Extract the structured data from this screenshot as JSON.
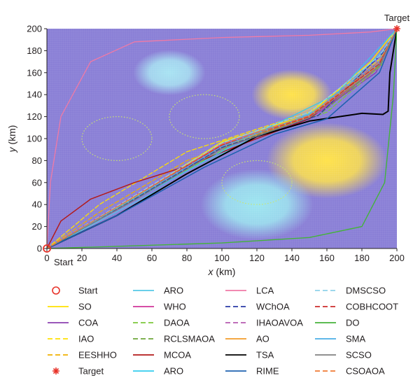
{
  "chart_data": {
    "type": "line",
    "xlabel": {
      "var": "x",
      "unit": " (km)"
    },
    "ylabel": {
      "var": "y",
      "unit": " (km)"
    },
    "xlim": [
      0,
      200
    ],
    "ylim": [
      0,
      200
    ],
    "xticks": [
      0,
      20,
      40,
      60,
      80,
      100,
      120,
      140,
      160,
      180,
      200
    ],
    "yticks": [
      0,
      20,
      40,
      60,
      80,
      100,
      120,
      140,
      160,
      180,
      200
    ],
    "grid": true,
    "background_color": "#8a7fd6",
    "annotations": {
      "start": "Start",
      "target": "Target"
    },
    "start_point": [
      0,
      0
    ],
    "target_point": [
      200,
      200
    ],
    "threats": [
      {
        "type": "filled",
        "center": [
          70,
          160
        ],
        "radius": 18,
        "color": "#a8e3f2"
      },
      {
        "type": "filled",
        "center": [
          140,
          140
        ],
        "radius": 20,
        "color": "#ffe24a"
      },
      {
        "type": "filled",
        "center": [
          160,
          80
        ],
        "radius": 30,
        "color": "#ffe24a"
      },
      {
        "type": "filled",
        "center": [
          120,
          40
        ],
        "radius": 28,
        "color": "#9de6f0"
      },
      {
        "type": "dotted",
        "center": [
          40,
          100
        ],
        "radius": 20,
        "color": "#c9e56b"
      },
      {
        "type": "dotted",
        "center": [
          90,
          120
        ],
        "radius": 20,
        "color": "#c9e56b"
      },
      {
        "type": "dotted",
        "center": [
          120,
          60
        ],
        "radius": 20,
        "color": "#c9e56b"
      }
    ],
    "series": [
      {
        "name": "SO",
        "color": "#ffe000",
        "dash": "solid",
        "width": 1.6,
        "points": [
          [
            0,
            0
          ],
          [
            50,
            47
          ],
          [
            100,
            97
          ],
          [
            150,
            122
          ],
          [
            185,
            170
          ],
          [
            200,
            200
          ]
        ]
      },
      {
        "name": "COA",
        "color": "#8c3fb0",
        "dash": "solid",
        "width": 1.3,
        "points": [
          [
            0,
            0
          ],
          [
            50,
            44
          ],
          [
            100,
            91
          ],
          [
            150,
            118
          ],
          [
            188,
            160
          ],
          [
            200,
            200
          ]
        ]
      },
      {
        "name": "IAO",
        "color": "#ffe100",
        "dash": "dash",
        "width": 1.3,
        "points": [
          [
            0,
            0
          ],
          [
            30,
            40
          ],
          [
            80,
            88
          ],
          [
            150,
            124
          ],
          [
            190,
            172
          ],
          [
            200,
            200
          ]
        ]
      },
      {
        "name": "EESHHO",
        "color": "#f0b000",
        "dash": "dash",
        "width": 1.3,
        "points": [
          [
            0,
            0
          ],
          [
            30,
            33
          ],
          [
            80,
            80
          ],
          [
            150,
            120
          ],
          [
            190,
            165
          ],
          [
            200,
            200
          ]
        ]
      },
      {
        "name": "ARO",
        "color": "#55c8e6",
        "dash": "solid",
        "width": 1.2,
        "points": [
          [
            0,
            0
          ],
          [
            60,
            50
          ],
          [
            110,
            95
          ],
          [
            160,
            130
          ],
          [
            192,
            180
          ],
          [
            200,
            200
          ]
        ]
      },
      {
        "name": "WHO",
        "color": "#d0349a",
        "dash": "solid",
        "width": 1.3,
        "points": [
          [
            0,
            0
          ],
          [
            50,
            48
          ],
          [
            100,
            94
          ],
          [
            150,
            118
          ],
          [
            190,
            165
          ],
          [
            200,
            200
          ]
        ]
      },
      {
        "name": "DAOA",
        "color": "#7cc83a",
        "dash": "dash",
        "width": 1.3,
        "points": [
          [
            0,
            0
          ],
          [
            60,
            54
          ],
          [
            110,
            98
          ],
          [
            160,
            124
          ],
          [
            192,
            168
          ],
          [
            200,
            200
          ]
        ]
      },
      {
        "name": "RCLSMAOA",
        "color": "#6da63a",
        "dash": "dash",
        "width": 1.3,
        "points": [
          [
            0,
            0
          ],
          [
            55,
            50
          ],
          [
            105,
            96
          ],
          [
            155,
            121
          ],
          [
            191,
            168
          ],
          [
            200,
            200
          ]
        ]
      },
      {
        "name": "MCOA",
        "color": "#b31a1a",
        "dash": "solid",
        "width": 1.5,
        "points": [
          [
            0,
            0
          ],
          [
            8,
            25
          ],
          [
            25,
            45
          ],
          [
            50,
            60
          ],
          [
            80,
            75
          ],
          [
            115,
            97
          ],
          [
            150,
            118
          ],
          [
            190,
            170
          ],
          [
            200,
            200
          ]
        ]
      },
      {
        "name": "ARO",
        "color": "#33ccee",
        "dash": "solid",
        "width": 1.2,
        "points": [
          [
            0,
            0
          ],
          [
            60,
            53
          ],
          [
            110,
            97
          ],
          [
            165,
            140
          ],
          [
            200,
            200
          ]
        ]
      },
      {
        "name": "LCA",
        "color": "#f07aa6",
        "dash": "solid",
        "width": 1.3,
        "points": [
          [
            0,
            0
          ],
          [
            2,
            60
          ],
          [
            8,
            120
          ],
          [
            25,
            170
          ],
          [
            50,
            188
          ],
          [
            100,
            192
          ],
          [
            150,
            194
          ],
          [
            185,
            197
          ],
          [
            200,
            200
          ]
        ]
      },
      {
        "name": "WChOA",
        "color": "#2a3aa6",
        "dash": "dash",
        "width": 1.3,
        "points": [
          [
            0,
            0
          ],
          [
            45,
            40
          ],
          [
            100,
            92
          ],
          [
            155,
            121
          ],
          [
            192,
            178
          ],
          [
            200,
            200
          ]
        ]
      },
      {
        "name": "IHAOAVOA",
        "color": "#b65ab0",
        "dash": "dash",
        "width": 1.3,
        "points": [
          [
            0,
            0
          ],
          [
            45,
            43
          ],
          [
            100,
            95
          ],
          [
            155,
            124
          ],
          [
            192,
            172
          ],
          [
            200,
            200
          ]
        ]
      },
      {
        "name": "AO",
        "color": "#f39c2a",
        "dash": "solid",
        "width": 1.3,
        "points": [
          [
            0,
            0
          ],
          [
            50,
            46
          ],
          [
            100,
            93
          ],
          [
            150,
            120
          ],
          [
            188,
            165
          ],
          [
            200,
            200
          ]
        ]
      },
      {
        "name": "TSA",
        "color": "#000000",
        "dash": "solid",
        "width": 2.0,
        "points": [
          [
            0,
            0
          ],
          [
            40,
            30
          ],
          [
            80,
            68
          ],
          [
            120,
            102
          ],
          [
            150,
            116
          ],
          [
            180,
            123
          ],
          [
            192,
            122
          ],
          [
            195,
            125
          ],
          [
            196,
            160
          ],
          [
            200,
            200
          ]
        ]
      },
      {
        "name": "RIME",
        "color": "#1f62b0",
        "dash": "solid",
        "width": 1.6,
        "points": [
          [
            0,
            0
          ],
          [
            40,
            30
          ],
          [
            90,
            74
          ],
          [
            130,
            104
          ],
          [
            160,
            118
          ],
          [
            190,
            160
          ],
          [
            200,
            200
          ]
        ]
      },
      {
        "name": "DMSCSO",
        "color": "#8ed2ea",
        "dash": "dash",
        "width": 1.3,
        "points": [
          [
            0,
            0
          ],
          [
            50,
            48
          ],
          [
            100,
            96
          ],
          [
            150,
            124
          ],
          [
            190,
            175
          ],
          [
            200,
            200
          ]
        ]
      },
      {
        "name": "COBHCOOT",
        "color": "#cc2d2d",
        "dash": "dash",
        "width": 1.3,
        "points": [
          [
            0,
            0
          ],
          [
            50,
            47
          ],
          [
            100,
            94
          ],
          [
            150,
            120
          ],
          [
            190,
            168
          ],
          [
            200,
            200
          ]
        ]
      },
      {
        "name": "DO",
        "color": "#44b33a",
        "dash": "solid",
        "width": 1.4,
        "points": [
          [
            0,
            0
          ],
          [
            40,
            2
          ],
          [
            100,
            5
          ],
          [
            150,
            10
          ],
          [
            180,
            20
          ],
          [
            193,
            60
          ],
          [
            198,
            140
          ],
          [
            200,
            200
          ]
        ]
      },
      {
        "name": "SMA",
        "color": "#4aaee6",
        "dash": "solid",
        "width": 1.3,
        "points": [
          [
            0,
            0
          ],
          [
            50,
            46
          ],
          [
            100,
            93
          ],
          [
            150,
            122
          ],
          [
            189,
            168
          ],
          [
            200,
            200
          ]
        ]
      },
      {
        "name": "SCSO",
        "color": "#808080",
        "dash": "solid",
        "width": 1.3,
        "points": [
          [
            0,
            0
          ],
          [
            50,
            44
          ],
          [
            100,
            91
          ],
          [
            150,
            119
          ],
          [
            190,
            166
          ],
          [
            200,
            200
          ]
        ]
      },
      {
        "name": "CSOAOA",
        "color": "#f07a33",
        "dash": "dash",
        "width": 1.3,
        "points": [
          [
            0,
            0
          ],
          [
            50,
            47
          ],
          [
            100,
            95
          ],
          [
            150,
            121
          ],
          [
            190,
            170
          ],
          [
            200,
            200
          ]
        ]
      }
    ],
    "legend": {
      "placement": "bottom",
      "columns": 4,
      "entries": [
        {
          "label": "Start",
          "marker": "circle",
          "color": "#e8332a"
        },
        {
          "label": "SO",
          "style": "solid",
          "color": "#ffe000"
        },
        {
          "label": "COA",
          "style": "solid",
          "color": "#8c3fb0"
        },
        {
          "label": "IAO",
          "style": "dash",
          "color": "#ffe100"
        },
        {
          "label": "EESHHO",
          "style": "dash",
          "color": "#f0b000"
        },
        {
          "label": "Target",
          "marker": "star",
          "color": "#e8332a"
        },
        {
          "label": "ARO",
          "style": "solid",
          "color": "#55c8e6"
        },
        {
          "label": "WHO",
          "style": "solid",
          "color": "#d0349a"
        },
        {
          "label": "DAOA",
          "style": "dash",
          "color": "#7cc83a"
        },
        {
          "label": "RCLSMAOA",
          "style": "dash",
          "color": "#6da63a"
        },
        {
          "label": "MCOA",
          "style": "solid",
          "color": "#b31a1a"
        },
        {
          "label": "ARO",
          "style": "solid",
          "color": "#33ccee"
        },
        {
          "label": "LCA",
          "style": "solid",
          "color": "#f07aa6"
        },
        {
          "label": "WChOA",
          "style": "dash",
          "color": "#2a3aa6"
        },
        {
          "label": "IHAOAVOA",
          "style": "dash",
          "color": "#b65ab0"
        },
        {
          "label": "AO",
          "style": "solid",
          "color": "#f39c2a"
        },
        {
          "label": "TSA",
          "style": "solid",
          "color": "#000000"
        },
        {
          "label": "RIME",
          "style": "solid",
          "color": "#1f62b0"
        },
        {
          "label": "DMSCSO",
          "style": "dash",
          "color": "#8ed2ea"
        },
        {
          "label": "COBHCOOT",
          "style": "dash",
          "color": "#cc2d2d"
        },
        {
          "label": "DO",
          "style": "solid",
          "color": "#44b33a"
        },
        {
          "label": "SMA",
          "style": "solid",
          "color": "#4aaee6"
        },
        {
          "label": "SCSO",
          "style": "solid",
          "color": "#808080"
        },
        {
          "label": "CSOAOA",
          "style": "dash",
          "color": "#f07a33"
        }
      ]
    }
  }
}
